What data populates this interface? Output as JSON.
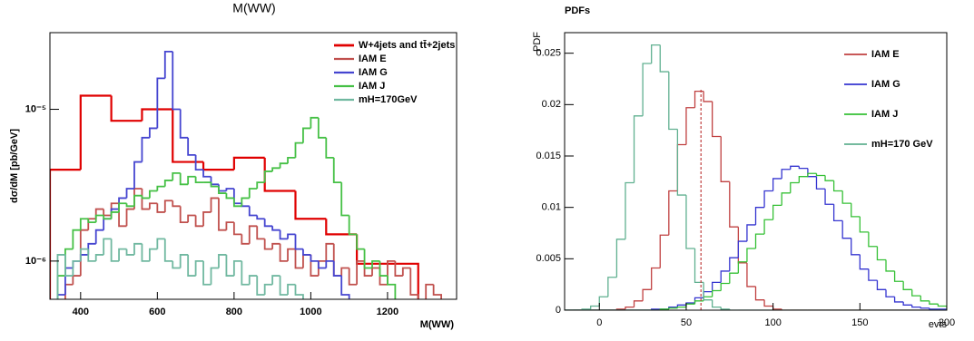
{
  "chart_data": [
    {
      "type": "histogram",
      "title": "M(WW)",
      "x_label": "M(WW)",
      "y_label": "dσ/dM [pb/GeV]",
      "log_y": true,
      "xlim": [
        320,
        1380
      ],
      "ylim": [
        5.6e-07,
        3.2e-05
      ],
      "xticks": [
        400,
        600,
        800,
        1000,
        1200
      ],
      "yticks": [
        {
          "value": 1e-06,
          "label": "10⁻⁶"
        },
        {
          "value": 1e-05,
          "label": "10⁻⁵"
        }
      ],
      "bins": [
        320,
        340,
        360,
        380,
        400,
        420,
        440,
        460,
        480,
        500,
        520,
        540,
        560,
        580,
        600,
        620,
        640,
        660,
        680,
        700,
        720,
        740,
        760,
        780,
        800,
        820,
        840,
        860,
        880,
        900,
        920,
        940,
        960,
        980,
        1000,
        1020,
        1040,
        1060,
        1080,
        1100,
        1120,
        1140,
        1160,
        1180,
        1200,
        1220,
        1240,
        1260,
        1280,
        1300,
        1320,
        1340,
        1360,
        1380
      ],
      "series": [
        {
          "name": "W+4jets and tt̄+2jets",
          "color": "#e00000",
          "width": 2.2,
          "bins": [
            320,
            400,
            480,
            560,
            640,
            720,
            800,
            880,
            960,
            1040,
            1120,
            1200,
            1280
          ],
          "values": [
            4e-06,
            1.23e-05,
            8.4e-06,
            1e-05,
            4.5e-06,
            4e-06,
            4.8e-06,
            2.9e-06,
            1.9e-06,
            1.5e-06,
            9.6e-07,
            9.6e-07
          ]
        },
        {
          "name": "IAM E",
          "color": "#c0504d",
          "width": 1.8,
          "values": [
            null,
            null,
            7e-07,
            8e-07,
            1.6e-06,
            1.9e-06,
            2.2e-06,
            2e-06,
            2.4e-06,
            1.7e-06,
            2.2e-06,
            3e-06,
            2.2e-06,
            2.4e-06,
            2.1e-06,
            2.5e-06,
            2.3e-06,
            1.8e-06,
            2e-06,
            1.7e-06,
            2.1e-06,
            2.6e-06,
            1.6e-06,
            1.8e-06,
            1.5e-06,
            1.3e-06,
            1.7e-06,
            1.4e-06,
            1.2e-06,
            1.3e-06,
            1e-06,
            1.2e-06,
            9e-07,
            1.1e-06,
            8e-07,
            1e-06,
            1.3e-06,
            8e-07,
            9e-07,
            7e-07,
            1e-06,
            8e-07,
            9e-07,
            7e-07,
            1e-06,
            8e-07,
            9e-07,
            6e-07,
            null,
            7e-07,
            6e-07,
            null,
            null
          ]
        },
        {
          "name": "IAM G",
          "color": "#4545d0",
          "width": 1.8,
          "values": [
            null,
            6e-07,
            9e-07,
            1e-06,
            1.1e-06,
            1.3e-06,
            1.6e-06,
            1.9e-06,
            2.2e-06,
            2.6e-06,
            3e-06,
            4.5e-06,
            6.5e-06,
            7.5e-06,
            1.6e-05,
            2.4e-05,
            1e-05,
            6.5e-06,
            5e-06,
            4e-06,
            3.6e-06,
            3.2e-06,
            2.9e-06,
            3e-06,
            2.4e-06,
            2.3e-06,
            2e-06,
            1.9e-06,
            1.7e-06,
            1.6e-06,
            1.4e-06,
            1.5e-06,
            1.2e-06,
            1.1e-06,
            1e-06,
            9e-07,
            1e-06,
            8e-07,
            6e-07,
            null,
            null,
            null,
            null,
            null,
            null,
            null,
            null,
            null,
            null,
            null,
            null,
            null,
            null
          ]
        },
        {
          "name": "IAM J",
          "color": "#45c045",
          "width": 1.8,
          "values": [
            null,
            8e-07,
            1.2e-06,
            1.6e-06,
            1.9e-06,
            1.8e-06,
            2e-06,
            1.9e-06,
            2.1e-06,
            2.4e-06,
            2.3e-06,
            2.7e-06,
            2.6e-06,
            2.9e-06,
            3.1e-06,
            3.4e-06,
            3.8e-06,
            3.2e-06,
            3.6e-06,
            3.3e-06,
            3.3e-06,
            3.1e-06,
            2.8e-06,
            2.6e-06,
            2.3e-06,
            2.6e-06,
            3e-06,
            3.3e-06,
            3.9e-06,
            4.1e-06,
            4.4e-06,
            4.8e-06,
            6e-06,
            7.5e-06,
            8.8e-06,
            6.5e-06,
            4.8e-06,
            3.3e-06,
            2e-06,
            1.5e-06,
            1.2e-06,
            9e-07,
            1e-06,
            8e-07,
            7e-07,
            null,
            null,
            null,
            null,
            null,
            null,
            null,
            null
          ]
        },
        {
          "name": "mH=170GeV",
          "color": "#70b8a0",
          "width": 1.8,
          "values": [
            null,
            1.1e-06,
            8e-07,
            1e-06,
            1.2e-06,
            1e-06,
            1.1e-06,
            1.4e-06,
            1e-06,
            1.2e-06,
            1.1e-06,
            1.3e-06,
            1e-06,
            1.2e-06,
            1.4e-06,
            1e-06,
            9e-07,
            1.1e-06,
            8e-07,
            1e-06,
            7e-07,
            9e-07,
            1.1e-06,
            8e-07,
            1e-06,
            7e-07,
            8e-07,
            6e-07,
            7e-07,
            8e-07,
            6e-07,
            7e-07,
            6e-07,
            null,
            null,
            null,
            null,
            null,
            null,
            null,
            null,
            null,
            null,
            null,
            null,
            null,
            null,
            null,
            null,
            null,
            null,
            null,
            null
          ]
        }
      ]
    },
    {
      "type": "histogram",
      "title": "PDFs",
      "x_label": "evts",
      "y_label": "PDF",
      "log_y": false,
      "xlim": [
        -20,
        200
      ],
      "ylim": [
        0,
        0.027
      ],
      "xticks": [
        0,
        50,
        100,
        150,
        200
      ],
      "yticks": [
        0,
        0.005,
        0.01,
        0.015,
        0.02,
        0.025
      ],
      "vline": {
        "x": 58.5,
        "ymax": 0.0216,
        "color": "#c04040"
      },
      "bins": [
        -20,
        -15,
        -10,
        -5,
        0,
        5,
        10,
        15,
        20,
        25,
        30,
        35,
        40,
        45,
        50,
        55,
        60,
        65,
        70,
        75,
        80,
        85,
        90,
        95,
        100,
        105,
        110,
        115,
        120,
        125,
        130,
        135,
        140,
        145,
        150,
        155,
        160,
        165,
        170,
        175,
        180,
        185,
        190,
        195,
        200
      ],
      "series": [
        {
          "name": "IAM E",
          "color": "#c04040",
          "width": 1.3,
          "values": [
            0,
            0,
            0,
            0,
            0,
            0,
            0.0001,
            0.0003,
            0.0009,
            0.002,
            0.0041,
            0.0073,
            0.0116,
            0.0161,
            0.0197,
            0.0213,
            0.0203,
            0.0169,
            0.0125,
            0.0081,
            0.0046,
            0.0023,
            0.001,
            0.0004,
            0.0001,
            0,
            0,
            0,
            0,
            0,
            0,
            0,
            0,
            0,
            0,
            0,
            0,
            0,
            0,
            0,
            0,
            0,
            0,
            0
          ]
        },
        {
          "name": "IAM G",
          "color": "#3535d0",
          "width": 1.3,
          "values": [
            0,
            0,
            0,
            0,
            0,
            0,
            0,
            0,
            0,
            0,
            0.0001,
            0.0001,
            0.0003,
            0.0005,
            0.0007,
            0.0012,
            0.0018,
            0.0027,
            0.0038,
            0.0051,
            0.0067,
            0.0083,
            0.01,
            0.0116,
            0.0128,
            0.0137,
            0.014,
            0.0138,
            0.013,
            0.0118,
            0.0103,
            0.0087,
            0.007,
            0.0054,
            0.004,
            0.0029,
            0.002,
            0.0013,
            0.0008,
            0.0005,
            0.0003,
            0.0002,
            0.0001,
            0.0001
          ]
        },
        {
          "name": "IAM J",
          "color": "#35c035",
          "width": 1.3,
          "values": [
            0,
            0,
            0,
            0,
            0,
            0,
            0,
            0,
            0,
            0,
            0,
            0.0001,
            0.0002,
            0.0003,
            0.0006,
            0.0009,
            0.0013,
            0.0019,
            0.0026,
            0.0036,
            0.0047,
            0.006,
            0.0074,
            0.0088,
            0.0102,
            0.0114,
            0.0124,
            0.013,
            0.0133,
            0.0131,
            0.0126,
            0.0116,
            0.0104,
            0.0091,
            0.0076,
            0.0062,
            0.0049,
            0.0038,
            0.0028,
            0.002,
            0.0014,
            0.0009,
            0.0006,
            0.0004
          ]
        },
        {
          "name": "mH=170 GeV",
          "color": "#60b090",
          "width": 1.3,
          "values": [
            0,
            0,
            0.0001,
            0.0004,
            0.0013,
            0.0032,
            0.0069,
            0.0124,
            0.0189,
            0.024,
            0.0258,
            0.0232,
            0.0176,
            0.0112,
            0.006,
            0.0027,
            0.001,
            0.0003,
            0.0001,
            0,
            0,
            0,
            0,
            0,
            0,
            0,
            0,
            0,
            0,
            0,
            0,
            0,
            0,
            0,
            0,
            0,
            0,
            0,
            0,
            0,
            0,
            0,
            0,
            0
          ]
        }
      ]
    }
  ]
}
